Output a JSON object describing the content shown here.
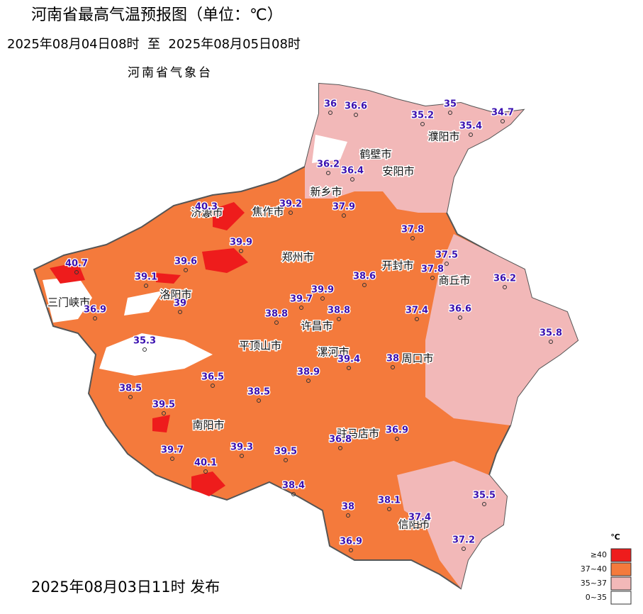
{
  "header": {
    "title": "河南省最高气温预报图（单位：℃）",
    "period": "2025年08月04日08时  至  2025年08月05日08时",
    "agency": "河南省气象台"
  },
  "cities": [
    "鹤壁市",
    "安阳市",
    "濮阳市",
    "新乡市",
    "济源市",
    "焦作市",
    "郑州市",
    "开封市",
    "商丘市",
    "三门峡市",
    "洛阳市",
    "许昌市",
    "平顶山市",
    "漯河市",
    "周口市",
    "南阳市",
    "驻马店市",
    "信阳市"
  ],
  "temperatures": [
    36,
    36.6,
    35.2,
    35,
    34.7,
    35.4,
    36.2,
    36.4,
    39.2,
    37.9,
    40.3,
    37.8,
    39.9,
    37.5,
    40.7,
    39.6,
    37.8,
    38.6,
    36.2,
    39.1,
    39.9,
    39.7,
    39,
    36.9,
    38.8,
    38.8,
    37.4,
    36.6,
    35.8,
    35.3,
    38,
    39.4,
    36.5,
    38.9,
    38.5,
    38.5,
    39.5,
    36.9,
    36.8,
    39.7,
    39.3,
    39.5,
    40.1,
    38.4,
    35.5,
    38.1,
    38,
    37.4,
    37.2,
    36.9
  ],
  "legend": {
    "unit": "℃",
    "items": [
      {
        "label": "≥40",
        "color": "#ee1c1c"
      },
      {
        "label": "37~40",
        "color": "#f47a3c"
      },
      {
        "label": "35~37",
        "color": "#f2b8b8"
      },
      {
        "label": "0~35",
        "color": "#ffffff"
      }
    ]
  },
  "footer": {
    "issued": "2025年08月03日11时 发布"
  }
}
